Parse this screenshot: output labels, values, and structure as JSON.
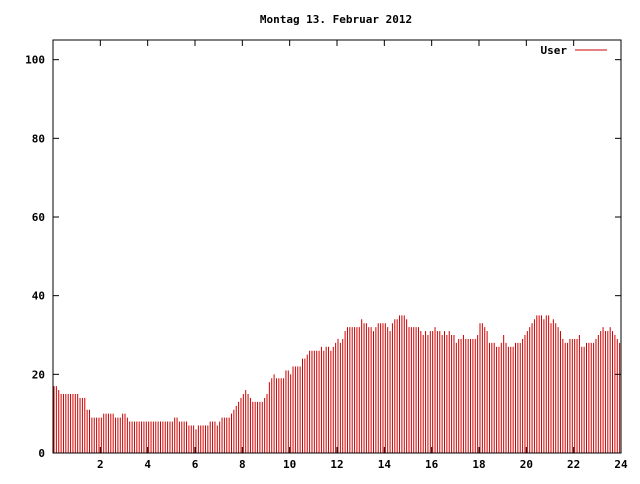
{
  "chart_data": {
    "type": "bar",
    "title": "Montag 13. Februar 2012",
    "xlabel": "",
    "ylabel": "",
    "xlim": [
      0,
      24
    ],
    "ylim": [
      0,
      105
    ],
    "x_ticks": [
      2,
      4,
      6,
      8,
      10,
      12,
      14,
      16,
      18,
      20,
      22,
      24
    ],
    "y_ticks": [
      0,
      20,
      40,
      60,
      80,
      100
    ],
    "grid": false,
    "legend_position": "top-right",
    "series": [
      {
        "name": "User",
        "color": "#cc0000",
        "x": [
          0.0,
          0.1,
          0.2,
          0.3,
          0.4,
          0.5,
          0.6,
          0.7,
          0.8,
          0.9,
          1.0,
          1.1,
          1.2,
          1.3,
          1.4,
          1.5,
          1.6,
          1.7,
          1.8,
          1.9,
          2.0,
          2.1,
          2.2,
          2.3,
          2.4,
          2.5,
          2.6,
          2.7,
          2.8,
          2.9,
          3.0,
          3.1,
          3.2,
          3.3,
          3.4,
          3.5,
          3.6,
          3.7,
          3.8,
          3.9,
          4.0,
          4.1,
          4.2,
          4.3,
          4.4,
          4.5,
          4.6,
          4.7,
          4.8,
          4.9,
          5.0,
          5.1,
          5.2,
          5.3,
          5.4,
          5.5,
          5.6,
          5.7,
          5.8,
          5.9,
          6.0,
          6.1,
          6.2,
          6.3,
          6.4,
          6.5,
          6.6,
          6.7,
          6.8,
          6.9,
          7.0,
          7.1,
          7.2,
          7.3,
          7.4,
          7.5,
          7.6,
          7.7,
          7.8,
          7.9,
          8.0,
          8.1,
          8.2,
          8.3,
          8.4,
          8.5,
          8.6,
          8.7,
          8.8,
          8.9,
          9.0,
          9.1,
          9.2,
          9.3,
          9.4,
          9.5,
          9.6,
          9.7,
          9.8,
          9.9,
          10.0,
          10.1,
          10.2,
          10.3,
          10.4,
          10.5,
          10.6,
          10.7,
          10.8,
          10.9,
          11.0,
          11.1,
          11.2,
          11.3,
          11.4,
          11.5,
          11.6,
          11.7,
          11.8,
          11.9,
          12.0,
          12.1,
          12.2,
          12.3,
          12.4,
          12.5,
          12.6,
          12.7,
          12.8,
          12.9,
          13.0,
          13.1,
          13.2,
          13.3,
          13.4,
          13.5,
          13.6,
          13.7,
          13.8,
          13.9,
          14.0,
          14.1,
          14.2,
          14.3,
          14.4,
          14.5,
          14.6,
          14.7,
          14.8,
          14.9,
          15.0,
          15.1,
          15.2,
          15.3,
          15.4,
          15.5,
          15.6,
          15.7,
          15.8,
          15.9,
          16.0,
          16.1,
          16.2,
          16.3,
          16.4,
          16.5,
          16.6,
          16.7,
          16.8,
          16.9,
          17.0,
          17.1,
          17.2,
          17.3,
          17.4,
          17.5,
          17.6,
          17.7,
          17.8,
          17.9,
          18.0,
          18.1,
          18.2,
          18.3,
          18.4,
          18.5,
          18.6,
          18.7,
          18.8,
          18.9,
          19.0,
          19.1,
          19.2,
          19.3,
          19.4,
          19.5,
          19.6,
          19.7,
          19.8,
          19.9,
          20.0,
          20.1,
          20.2,
          20.3,
          20.4,
          20.5,
          20.6,
          20.7,
          20.8,
          20.9,
          21.0,
          21.1,
          21.2,
          21.3,
          21.4,
          21.5,
          21.6,
          21.7,
          21.8,
          21.9,
          22.0,
          22.1,
          22.2,
          22.3,
          22.4,
          22.5,
          22.6,
          22.7,
          22.8,
          22.9,
          23.0,
          23.1,
          23.2,
          23.3,
          23.4,
          23.5,
          23.6,
          23.7,
          23.8,
          23.9
        ],
        "values": [
          17,
          17,
          16,
          15,
          15,
          15,
          15,
          15,
          15,
          15,
          15,
          14,
          14,
          14,
          11,
          11,
          9,
          9,
          9,
          9,
          9,
          10,
          10,
          10,
          10,
          10,
          9,
          9,
          9,
          10,
          10,
          9,
          8,
          8,
          8,
          8,
          8,
          8,
          8,
          8,
          8,
          8,
          8,
          8,
          8,
          8,
          8,
          8,
          8,
          8,
          8,
          9,
          9,
          8,
          8,
          8,
          8,
          7,
          7,
          7,
          6,
          7,
          7,
          7,
          7,
          7,
          8,
          8,
          8,
          7,
          8,
          9,
          9,
          9,
          9,
          10,
          11,
          12,
          13,
          14,
          15,
          16,
          15,
          14,
          13,
          13,
          13,
          13,
          13,
          14,
          15,
          18,
          19,
          20,
          19,
          19,
          19,
          19,
          21,
          21,
          20,
          22,
          22,
          22,
          22,
          24,
          24,
          25,
          26,
          26,
          26,
          26,
          26,
          27,
          26,
          27,
          27,
          26,
          27,
          28,
          29,
          28,
          29,
          31,
          32,
          32,
          32,
          32,
          32,
          32,
          34,
          33,
          33,
          32,
          32,
          31,
          32,
          33,
          33,
          33,
          33,
          32,
          31,
          33,
          34,
          34,
          35,
          35,
          35,
          34,
          32,
          32,
          32,
          32,
          32,
          31,
          30,
          31,
          30,
          31,
          31,
          32,
          31,
          31,
          30,
          31,
          30,
          31,
          30,
          30,
          28,
          29,
          29,
          30,
          29,
          29,
          29,
          29,
          29,
          30,
          33,
          33,
          32,
          31,
          28,
          28,
          28,
          27,
          27,
          28,
          30,
          28,
          27,
          27,
          27,
          28,
          28,
          28,
          29,
          30,
          31,
          32,
          33,
          34,
          35,
          35,
          35,
          34,
          35,
          35,
          33,
          34,
          33,
          32,
          31,
          29,
          28,
          28,
          29,
          29,
          29,
          29,
          30,
          27,
          27,
          28,
          28,
          28,
          28,
          29,
          30,
          31,
          32,
          31,
          31,
          32,
          31,
          30,
          29,
          28
        ]
      }
    ]
  }
}
